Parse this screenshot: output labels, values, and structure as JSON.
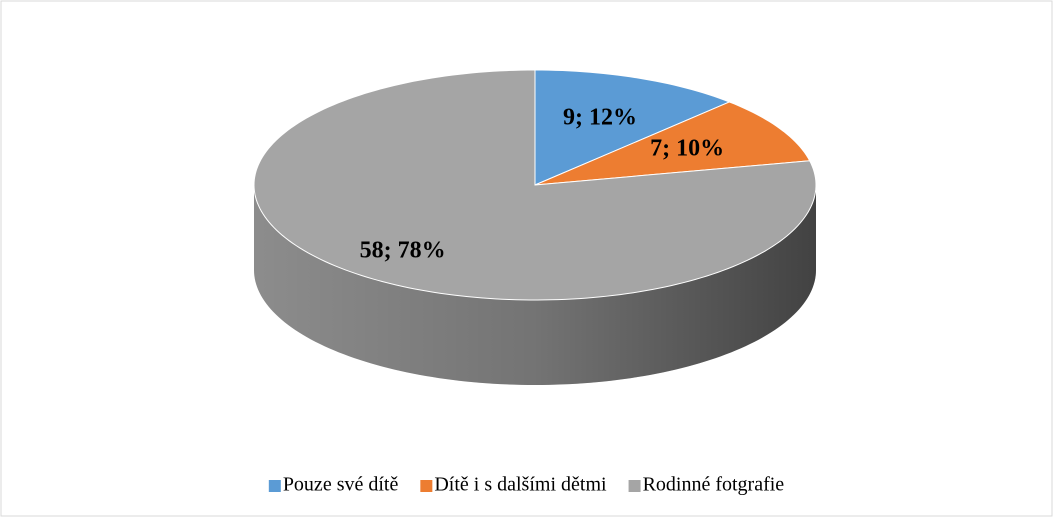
{
  "chart_data": {
    "type": "pie",
    "categories": [
      "Pouze své dítě",
      "Dítě i s dalšími dětmi",
      "Rodinné fotgrafie"
    ],
    "values": [
      9,
      7,
      58
    ],
    "value_labels": [
      "9; 12%",
      "7; 10%",
      "58; 78%"
    ],
    "colors": [
      "#5b9bd5",
      "#ed7d31",
      "#a5a5a5"
    ],
    "legend": "bottom"
  }
}
